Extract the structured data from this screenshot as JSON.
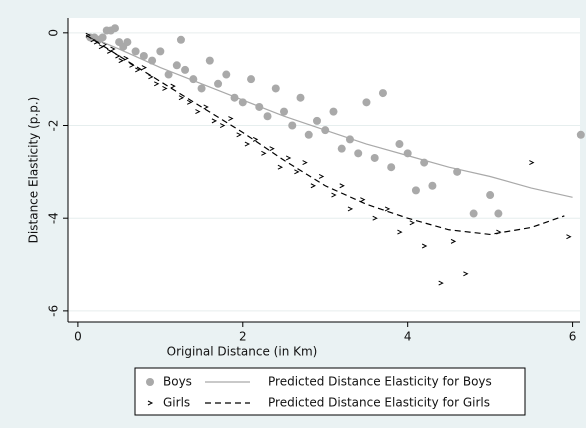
{
  "chart_data": {
    "type": "scatter",
    "xlabel": "Original Distance (in Km)",
    "ylabel": "Distance Elasticity (p.p.)",
    "xlim": [
      -0.12,
      6.09
    ],
    "ylim": [
      -6.24,
      0.32
    ],
    "xticks": [
      0,
      2,
      4,
      6
    ],
    "yticks": [
      0,
      -2,
      -4,
      -6
    ],
    "grid": true,
    "series": [
      {
        "name": "Boys",
        "color": "#a9a9a9",
        "marker": "circle",
        "x": [
          0.15,
          0.2,
          0.25,
          0.3,
          0.35,
          0.4,
          0.45,
          0.5,
          0.55,
          0.6,
          0.7,
          0.8,
          0.9,
          1.0,
          1.1,
          1.2,
          1.25,
          1.3,
          1.4,
          1.5,
          1.6,
          1.7,
          1.8,
          1.9,
          2.0,
          2.1,
          2.2,
          2.3,
          2.4,
          2.5,
          2.6,
          2.7,
          2.8,
          2.9,
          3.0,
          3.1,
          3.2,
          3.3,
          3.4,
          3.5,
          3.6,
          3.7,
          3.8,
          3.9,
          4.0,
          4.1,
          4.2,
          4.3,
          4.6,
          4.8,
          5.0,
          5.1,
          6.1
        ],
        "values": [
          -0.1,
          -0.1,
          -0.15,
          -0.1,
          0.05,
          0.05,
          0.1,
          -0.2,
          -0.3,
          -0.2,
          -0.4,
          -0.5,
          -0.6,
          -0.4,
          -0.9,
          -0.7,
          -0.15,
          -0.8,
          -1.0,
          -1.2,
          -0.6,
          -1.1,
          -0.9,
          -1.4,
          -1.5,
          -1.0,
          -1.6,
          -1.8,
          -1.2,
          -1.7,
          -2.0,
          -1.4,
          -2.2,
          -1.9,
          -2.1,
          -1.7,
          -2.5,
          -2.3,
          -2.6,
          -1.5,
          -2.7,
          -1.3,
          -2.9,
          -2.4,
          -2.6,
          -3.4,
          -2.8,
          -3.3,
          -3.0,
          -3.9,
          -3.5,
          -3.9,
          -2.2
        ]
      },
      {
        "name": "Girls",
        "color": "#000000",
        "marker": "chevron",
        "x": [
          0.12,
          0.18,
          0.22,
          0.28,
          0.32,
          0.38,
          0.42,
          0.48,
          0.52,
          0.58,
          0.65,
          0.72,
          0.8,
          0.88,
          0.95,
          1.05,
          1.15,
          1.25,
          1.35,
          1.45,
          1.55,
          1.65,
          1.75,
          1.85,
          1.95,
          2.05,
          2.15,
          2.25,
          2.35,
          2.45,
          2.55,
          2.65,
          2.75,
          2.85,
          2.95,
          3.1,
          3.2,
          3.3,
          3.45,
          3.6,
          3.75,
          3.9,
          4.05,
          4.2,
          4.4,
          4.55,
          4.7,
          5.1,
          5.5,
          5.95
        ],
        "values": [
          -0.05,
          -0.15,
          -0.2,
          -0.3,
          -0.25,
          -0.4,
          -0.35,
          -0.5,
          -0.6,
          -0.55,
          -0.7,
          -0.8,
          -0.75,
          -0.95,
          -1.1,
          -1.2,
          -1.15,
          -1.4,
          -1.5,
          -1.7,
          -1.6,
          -1.9,
          -2.0,
          -1.85,
          -2.2,
          -2.4,
          -2.3,
          -2.6,
          -2.5,
          -2.9,
          -2.7,
          -3.0,
          -2.8,
          -3.3,
          -3.1,
          -3.5,
          -3.3,
          -3.8,
          -3.6,
          -4.0,
          -3.8,
          -4.3,
          -4.1,
          -4.6,
          -5.4,
          -4.5,
          -5.2,
          -4.3,
          -2.8,
          -4.4
        ]
      },
      {
        "name": "Predicted Distance Elasticity for Boys",
        "color": "#a9a9a9",
        "line": "solid",
        "x": [
          0.1,
          0.5,
          1,
          1.5,
          2,
          2.5,
          3,
          3.5,
          4,
          4.5,
          5,
          5.5,
          6
        ],
        "values": [
          -0.05,
          -0.35,
          -0.75,
          -1.1,
          -1.45,
          -1.8,
          -2.1,
          -2.4,
          -2.65,
          -2.9,
          -3.1,
          -3.35,
          -3.55
        ]
      },
      {
        "name": "Predicted Distance Elasticity for Girls",
        "color": "#000000",
        "line": "dashed",
        "x": [
          0.1,
          0.5,
          1,
          1.5,
          2,
          2.5,
          3,
          3.5,
          4,
          4.5,
          5,
          5.5,
          5.9
        ],
        "values": [
          -0.05,
          -0.5,
          -1.05,
          -1.6,
          -2.15,
          -2.75,
          -3.3,
          -3.7,
          -4.0,
          -4.25,
          -4.35,
          -4.2,
          -3.95
        ]
      }
    ]
  }
}
